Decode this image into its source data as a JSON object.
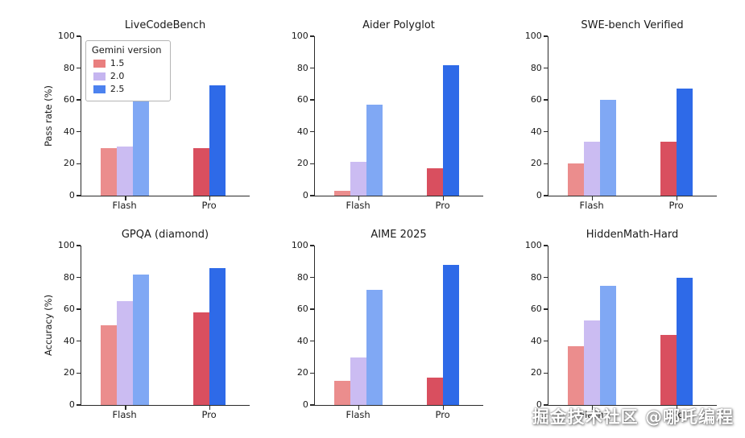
{
  "watermark": "掘金技术社区 @哪吒编程",
  "legend": {
    "title": "Gemini version",
    "entries": [
      {
        "label": "1.5",
        "color": "#e97f7f"
      },
      {
        "label": "2.0",
        "color": "#c5b5f0"
      },
      {
        "label": "2.5",
        "color": "#4c82ef"
      }
    ],
    "position": "upper left of first chart"
  },
  "series_colors": {
    "Flash": {
      "1.5": "#eb8d8d",
      "2.0": "#cbbcf2",
      "2.5": "#80a8f4"
    },
    "Pro": {
      "1.5": "#d94f5f",
      "2.0": "#a78fe9",
      "2.5": "#2e6ae8"
    }
  },
  "chart_data": [
    {
      "type": "bar",
      "title": "LiveCodeBench",
      "ylabel": "Pass rate (%)",
      "ylim": [
        0,
        100
      ],
      "yticks": [
        0,
        20,
        40,
        60,
        80,
        100
      ],
      "categories": [
        "Flash",
        "Pro"
      ],
      "grid": false,
      "groups": [
        {
          "label": "Flash",
          "bars": [
            {
              "series": "1.5",
              "value": 30
            },
            {
              "series": "2.0",
              "value": 31
            },
            {
              "series": "2.5",
              "value": 61
            }
          ]
        },
        {
          "label": "Pro",
          "bars": [
            {
              "series": "1.5",
              "value": 30
            },
            {
              "series": "2.5",
              "value": 69
            }
          ]
        }
      ]
    },
    {
      "type": "bar",
      "title": "Aider Polyglot",
      "ylabel": "",
      "ylim": [
        0,
        100
      ],
      "yticks": [
        0,
        20,
        40,
        60,
        80,
        100
      ],
      "categories": [
        "Flash",
        "Pro"
      ],
      "grid": false,
      "groups": [
        {
          "label": "Flash",
          "bars": [
            {
              "series": "1.5",
              "value": 3
            },
            {
              "series": "2.0",
              "value": 21
            },
            {
              "series": "2.5",
              "value": 57
            }
          ]
        },
        {
          "label": "Pro",
          "bars": [
            {
              "series": "1.5",
              "value": 17
            },
            {
              "series": "2.5",
              "value": 82
            }
          ]
        }
      ]
    },
    {
      "type": "bar",
      "title": "SWE-bench Verified",
      "ylabel": "",
      "ylim": [
        0,
        100
      ],
      "yticks": [
        0,
        20,
        40,
        60,
        80,
        100
      ],
      "categories": [
        "Flash",
        "Pro"
      ],
      "grid": false,
      "groups": [
        {
          "label": "Flash",
          "bars": [
            {
              "series": "1.5",
              "value": 20
            },
            {
              "series": "2.0",
              "value": 34
            },
            {
              "series": "2.5",
              "value": 60
            }
          ]
        },
        {
          "label": "Pro",
          "bars": [
            {
              "series": "1.5",
              "value": 34
            },
            {
              "series": "2.5",
              "value": 67
            }
          ]
        }
      ]
    },
    {
      "type": "bar",
      "title": "GPQA (diamond)",
      "ylabel": "Accuracy (%)",
      "ylim": [
        0,
        100
      ],
      "yticks": [
        0,
        20,
        40,
        60,
        80,
        100
      ],
      "categories": [
        "Flash",
        "Pro"
      ],
      "grid": false,
      "groups": [
        {
          "label": "Flash",
          "bars": [
            {
              "series": "1.5",
              "value": 50
            },
            {
              "series": "2.0",
              "value": 65
            },
            {
              "series": "2.5",
              "value": 82
            }
          ]
        },
        {
          "label": "Pro",
          "bars": [
            {
              "series": "1.5",
              "value": 58
            },
            {
              "series": "2.5",
              "value": 86
            }
          ]
        }
      ]
    },
    {
      "type": "bar",
      "title": "AIME 2025",
      "ylabel": "",
      "ylim": [
        0,
        100
      ],
      "yticks": [
        0,
        20,
        40,
        60,
        80,
        100
      ],
      "categories": [
        "Flash",
        "Pro"
      ],
      "grid": false,
      "groups": [
        {
          "label": "Flash",
          "bars": [
            {
              "series": "1.5",
              "value": 15
            },
            {
              "series": "2.0",
              "value": 30
            },
            {
              "series": "2.5",
              "value": 72
            }
          ]
        },
        {
          "label": "Pro",
          "bars": [
            {
              "series": "1.5",
              "value": 17
            },
            {
              "series": "2.5",
              "value": 88
            }
          ]
        }
      ]
    },
    {
      "type": "bar",
      "title": "HiddenMath-Hard",
      "ylabel": "",
      "ylim": [
        0,
        100
      ],
      "yticks": [
        0,
        20,
        40,
        60,
        80,
        100
      ],
      "categories": [
        "Flash",
        "Pro"
      ],
      "grid": false,
      "groups": [
        {
          "label": "Flash",
          "bars": [
            {
              "series": "1.5",
              "value": 37
            },
            {
              "series": "2.0",
              "value": 53
            },
            {
              "series": "2.5",
              "value": 75
            }
          ]
        },
        {
          "label": "Pro",
          "bars": [
            {
              "series": "1.5",
              "value": 44
            },
            {
              "series": "2.5",
              "value": 80
            }
          ]
        }
      ]
    }
  ]
}
